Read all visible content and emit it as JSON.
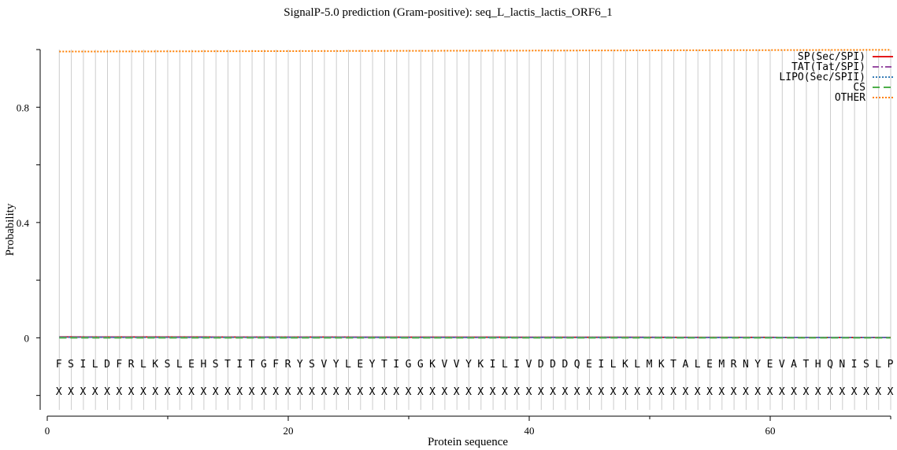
{
  "chart_data": {
    "type": "line",
    "title": "SignalP-5.0 prediction (Gram-positive):  seq_L_lactis_lactis_ORF6_1",
    "xlabel": "Protein sequence",
    "ylabel": "Probability",
    "xlim": [
      0,
      70
    ],
    "ylim": [
      -0.25,
      1.0
    ],
    "x_ticks": [
      0,
      20,
      40,
      60
    ],
    "y_ticks": [
      0,
      0.4,
      0.8
    ],
    "grid": "vertical lines at each residue",
    "legend_position": "top-right",
    "sequence": "FSILDFRLKSLEHSTITGFRYSVYLEYTIGGKVVYKILIVDDDQEILKLMKTALEMRNYEVATHQNISLP",
    "annotation": "XXXXXXXXXXXXXXXXXXXXXXXXXXXXXXXXXXXXXXXXXXXXXXXXXXXXXXXXXXXXXXXXXXXXXX",
    "series": [
      {
        "name": "SP(Sec/SPI)",
        "color": "#e41a1c",
        "dash": "solid",
        "start": 0.003,
        "end": 0.001
      },
      {
        "name": "TAT(Tat/SPI)",
        "color": "#984ea3",
        "dash": "dashdot",
        "start": 0.002,
        "end": 0.001
      },
      {
        "name": "LIPO(Sec/SPII)",
        "color": "#377eb8",
        "dash": "dotted",
        "start": 0.002,
        "end": 0.001
      },
      {
        "name": "CS",
        "color": "#4daf4a",
        "dash": "dashed",
        "start": 0.0,
        "end": 0.0
      },
      {
        "name": "OTHER",
        "color": "#ff7f00",
        "dash": "dotted",
        "start": 0.993,
        "end": 0.999
      }
    ]
  }
}
